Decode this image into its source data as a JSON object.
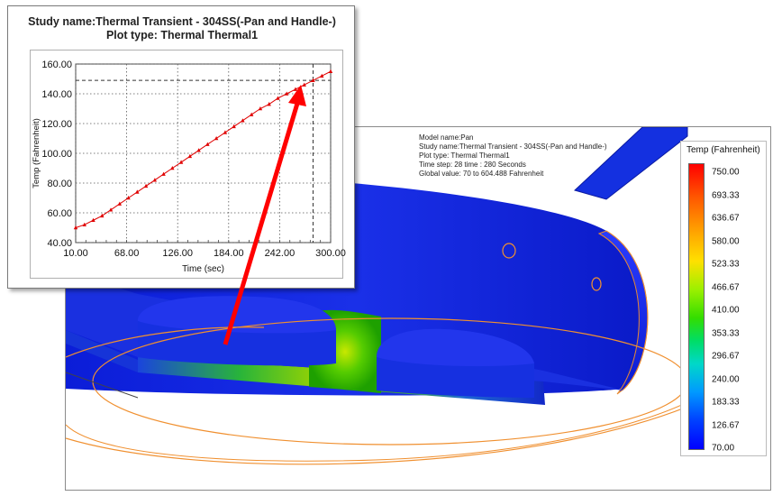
{
  "model_view": {
    "info_lines": [
      "Model name:Pan",
      "Study name:Thermal Transient - 304SS(-Pan and Handle-)",
      "Plot type: Thermal Thermal1",
      "Time step: 28   time : 280 Seconds",
      "Global value: 70 to 604.488 Fahrenheit"
    ],
    "legend": {
      "title": "Temp (Fahrenheit)",
      "ticks": [
        "750.00",
        "693.33",
        "636.67",
        "580.00",
        "523.33",
        "466.67",
        "410.00",
        "353.33",
        "296.67",
        "240.00",
        "183.33",
        "126.67",
        "70.00"
      ]
    }
  },
  "chart_panel": {
    "title_line1": "Study name:Thermal Transient - 304SS(-Pan and Handle-)",
    "title_line2": "Plot type: Thermal Thermal1"
  },
  "chart_data": {
    "type": "line",
    "title": "Study name:Thermal Transient - 304SS(-Pan and Handle-)",
    "subtitle": "Plot type: Thermal Thermal1",
    "xlabel": "Time (sec)",
    "ylabel": "Temp (Fahrenheit)",
    "xlim": [
      10,
      300
    ],
    "ylim": [
      40,
      160
    ],
    "x_ticks": [
      "10.00",
      "68.00",
      "126.00",
      "184.00",
      "242.00",
      "300.00"
    ],
    "y_ticks": [
      "40.00",
      "60.00",
      "80.00",
      "100.00",
      "120.00",
      "140.00",
      "160.00"
    ],
    "grid": true,
    "series": [
      {
        "x": [
          10,
          20,
          30,
          40,
          50,
          60,
          70,
          80,
          90,
          100,
          110,
          120,
          130,
          140,
          150,
          160,
          170,
          180,
          190,
          200,
          210,
          220,
          230,
          240,
          250,
          260,
          270,
          280,
          290,
          300
        ],
        "values": [
          50,
          52,
          55,
          58,
          62,
          66,
          70,
          74,
          78,
          82,
          86,
          90,
          94,
          98,
          102,
          106,
          110,
          114,
          118,
          122,
          126,
          130,
          133,
          137,
          140,
          143,
          146,
          149,
          152,
          155
        ],
        "color": "#e00000"
      }
    ],
    "reference_x": 280,
    "reference_y": 149
  },
  "colors": {
    "series": "#e00000",
    "arrow": "#ff0000",
    "pan_body": "#1a2fd8",
    "outline": "#f08a2a"
  }
}
